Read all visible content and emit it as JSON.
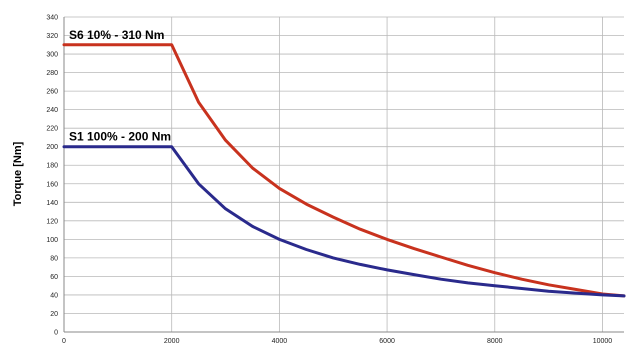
{
  "chart_data": {
    "type": "line",
    "title": "",
    "xlabel": "",
    "ylabel": "Torque [Nm]",
    "xlim": [
      0,
      10400
    ],
    "ylim": [
      0,
      340
    ],
    "xticks": [
      0,
      2000,
      4000,
      6000,
      8000,
      10000
    ],
    "yticks": [
      0,
      20,
      40,
      60,
      80,
      100,
      120,
      140,
      160,
      180,
      200,
      220,
      240,
      260,
      280,
      300,
      320,
      340
    ],
    "grid": true,
    "series": [
      {
        "label": "S6 10% - 310 Nm",
        "color": "#c8321e",
        "x": [
          0,
          2000,
          2500,
          3000,
          3500,
          4000,
          4500,
          5000,
          5500,
          6000,
          6500,
          7000,
          7500,
          8000,
          8500,
          9000,
          9500,
          10000,
          10400
        ],
        "y": [
          310,
          310,
          248,
          207,
          177,
          155,
          138,
          124,
          111,
          100,
          90,
          81,
          72,
          64,
          57,
          51,
          46,
          41,
          39
        ]
      },
      {
        "label": "S1 100% - 200 Nm",
        "color": "#2a2a8c",
        "x": [
          0,
          2000,
          2500,
          3000,
          3500,
          4000,
          4500,
          5000,
          5500,
          6000,
          6500,
          7000,
          7500,
          8000,
          8500,
          9000,
          9500,
          10000,
          10400
        ],
        "y": [
          200,
          200,
          160,
          133,
          114,
          100,
          89,
          80,
          73,
          67,
          62,
          57,
          53,
          50,
          47,
          44,
          42,
          40,
          39
        ]
      }
    ]
  }
}
